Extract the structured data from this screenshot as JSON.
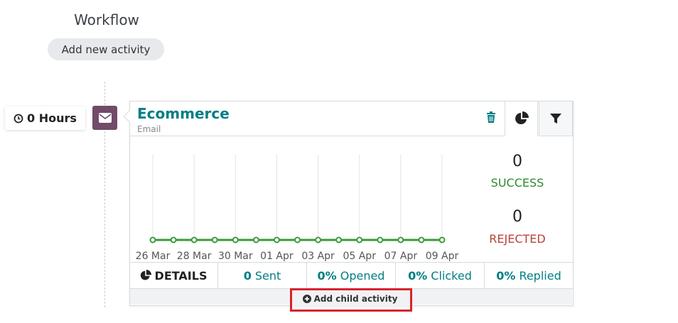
{
  "header": {
    "title": "Workflow",
    "button": "Add new activity"
  },
  "activity": {
    "delay": "0 Hours",
    "name": "Ecommerce",
    "kind": "Email",
    "chart": {
      "type": "line",
      "color": "#3a9a3a",
      "categories": [
        "26 Mar",
        null,
        "28 Mar",
        null,
        "30 Mar",
        null,
        "01 Apr",
        null,
        "03 Apr",
        null,
        "05 Apr",
        null,
        "07 Apr",
        null,
        "09 Apr"
      ],
      "values": [
        0,
        0,
        0,
        0,
        0,
        0,
        0,
        0,
        0,
        0,
        0,
        0,
        0,
        0,
        0
      ]
    },
    "success": {
      "value": "0",
      "label": "SUCCESS"
    },
    "rejected": {
      "value": "0",
      "label": "REJECTED"
    },
    "stats": {
      "details": "DETAILS",
      "sent": {
        "value": "0",
        "label": "Sent"
      },
      "opened": {
        "value": "0%",
        "label": "Opened"
      },
      "clicked": {
        "value": "0%",
        "label": "Clicked"
      },
      "replied": {
        "value": "0%",
        "label": "Replied"
      }
    },
    "child_button": "Add child activity"
  }
}
